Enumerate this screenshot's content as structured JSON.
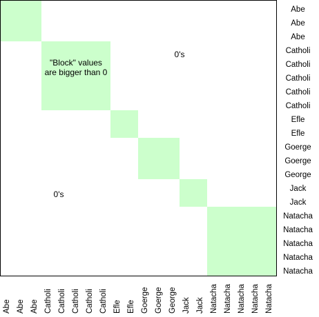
{
  "labels": [
    "Abe",
    "Abe",
    "Abe",
    "Catholi",
    "Catholi",
    "Catholi",
    "Catholi",
    "Catholi",
    "Efle",
    "Efle",
    "Goerge",
    "Goerge",
    "George",
    "Jack",
    "Jack",
    "Natacha",
    "Natacha",
    "Natacha",
    "Natacha",
    "Natacha"
  ],
  "row_labels": [
    "Abe",
    "Abe",
    "Abe",
    "Catholi",
    "Catholi",
    "Catholi",
    "Catholi",
    "Catholi",
    "Efle",
    "Efle",
    "Goerge",
    "Goerge",
    "George",
    "Jack",
    "Jack",
    "Natacha",
    "Natacha",
    "Natacha",
    "Natacha",
    "Natacha"
  ],
  "blocks": [
    {
      "start": 0,
      "end": 2
    },
    {
      "start": 3,
      "end": 7
    },
    {
      "start": 8,
      "end": 9
    },
    {
      "start": 10,
      "end": 12
    },
    {
      "start": 13,
      "end": 14
    },
    {
      "start": 15,
      "end": 19
    }
  ],
  "colors": {
    "block": "#ccffcc",
    "border": "#000000"
  },
  "annotations": {
    "block_note": "\"Block\" values are bigger than 0",
    "zeros_top": "0's",
    "zeros_bottom": "0's"
  }
}
